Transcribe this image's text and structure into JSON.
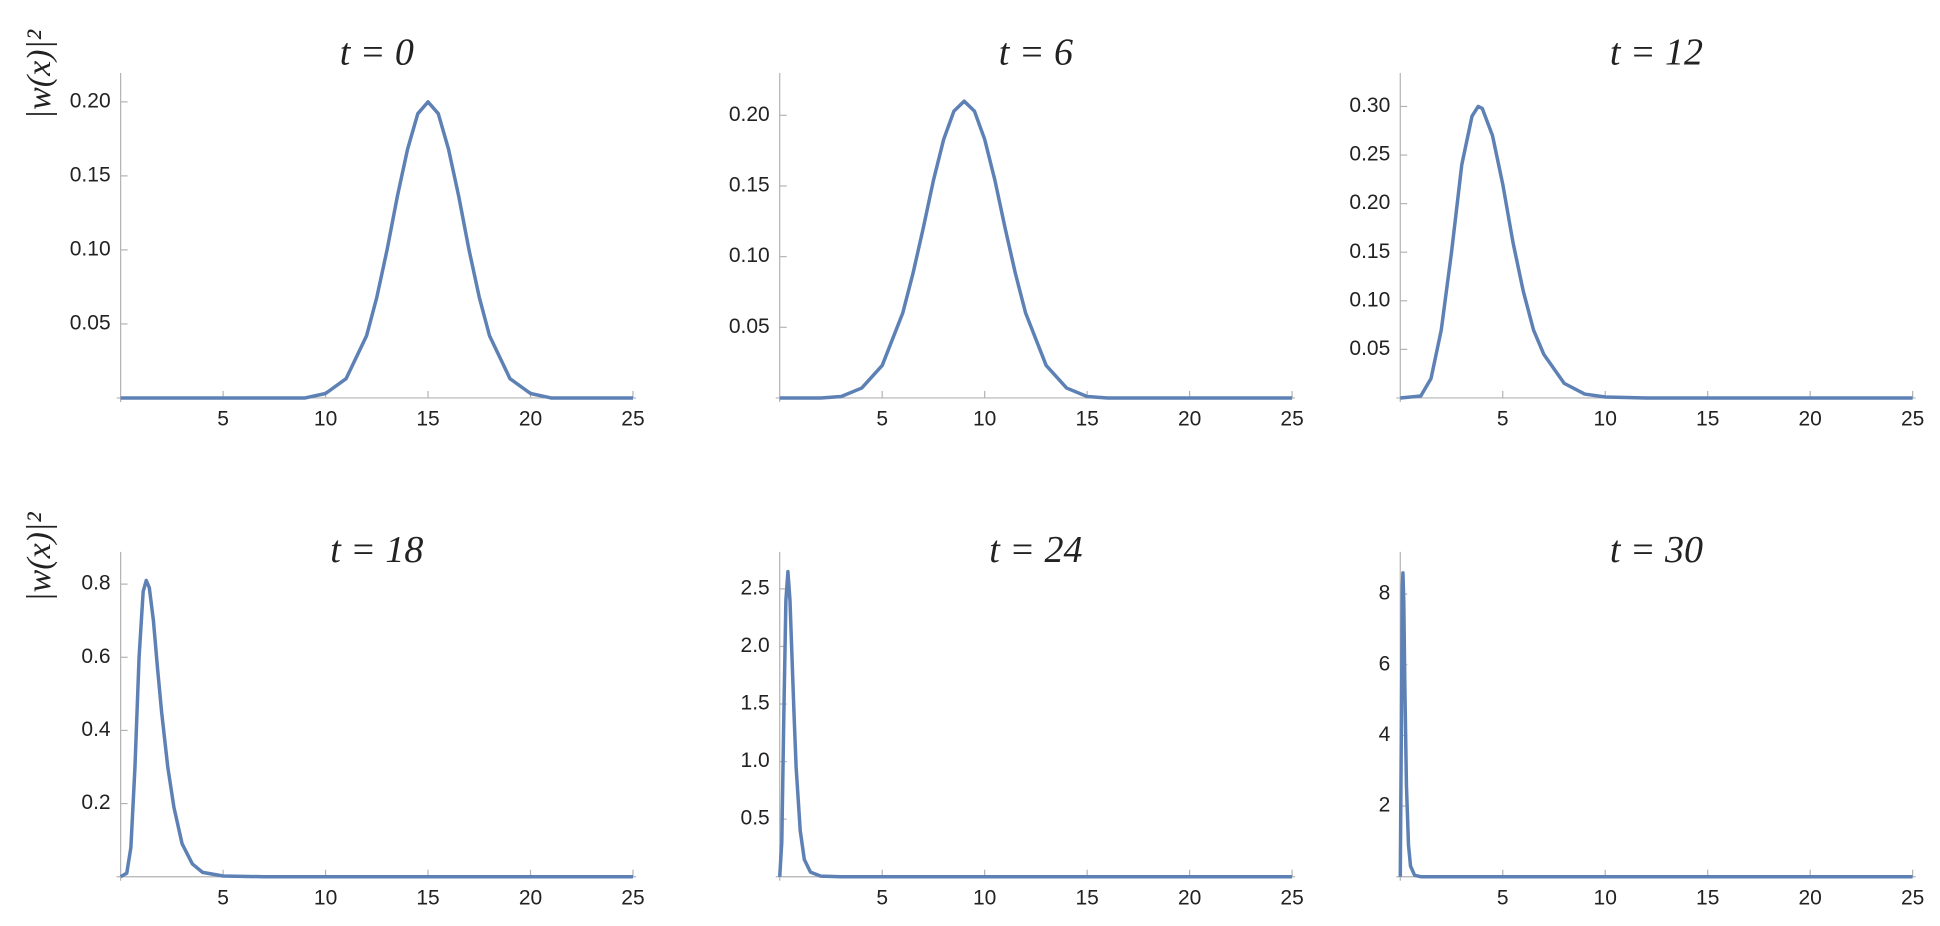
{
  "chart_data": [
    {
      "type": "line",
      "title": "t = 0",
      "ylabel": "|w(x)|²",
      "color": "#5e81b5",
      "x": [
        0,
        2,
        4,
        6,
        8,
        9,
        10,
        11,
        12,
        12.5,
        13,
        13.5,
        14,
        14.5,
        15,
        15.5,
        16,
        16.5,
        17,
        17.5,
        18,
        19,
        20,
        21,
        22,
        24,
        25
      ],
      "values": [
        0,
        0,
        0,
        0,
        0,
        0,
        0.003,
        0.013,
        0.042,
        0.068,
        0.1,
        0.136,
        0.168,
        0.192,
        0.2,
        0.192,
        0.168,
        0.136,
        0.1,
        0.068,
        0.042,
        0.013,
        0.003,
        0,
        0,
        0,
        0
      ],
      "xlim": [
        0,
        25
      ],
      "ylim": [
        0,
        0.21
      ],
      "xticks": [
        5,
        10,
        15,
        20,
        25
      ],
      "yticks": [
        0.05,
        {
          "value": 0.1,
          "label": "0.10"
        },
        0.15,
        {
          "value": 0.2,
          "label": "0.20"
        }
      ]
    },
    {
      "type": "line",
      "title": "t = 6",
      "color": "#5e81b5",
      "x": [
        0,
        2,
        3,
        4,
        5,
        6,
        6.5,
        7,
        7.5,
        8,
        8.5,
        9,
        9.5,
        10,
        10.5,
        11,
        11.5,
        12,
        13,
        14,
        15,
        16,
        18,
        20,
        25
      ],
      "values": [
        0,
        0,
        0.001,
        0.007,
        0.023,
        0.06,
        0.088,
        0.12,
        0.154,
        0.183,
        0.203,
        0.21,
        0.203,
        0.183,
        0.154,
        0.12,
        0.088,
        0.06,
        0.023,
        0.007,
        0.001,
        0,
        0,
        0,
        0
      ],
      "xlim": [
        0,
        25
      ],
      "ylim": [
        0,
        0.22
      ],
      "xticks": [
        5,
        10,
        15,
        20,
        25
      ],
      "yticks": [
        0.05,
        {
          "value": 0.1,
          "label": "0.10"
        },
        0.15,
        {
          "value": 0.2,
          "label": "0.20"
        }
      ]
    },
    {
      "type": "line",
      "title": "t = 12",
      "color": "#5e81b5",
      "x": [
        0,
        1,
        1.5,
        2,
        2.5,
        3,
        3.5,
        3.8,
        4,
        4.5,
        5,
        5.5,
        6,
        6.5,
        7,
        8,
        9,
        10,
        12,
        15,
        20,
        25
      ],
      "values": [
        0,
        0.002,
        0.02,
        0.07,
        0.15,
        0.24,
        0.29,
        0.3,
        0.298,
        0.27,
        0.22,
        0.16,
        0.11,
        0.07,
        0.045,
        0.015,
        0.004,
        0.001,
        0,
        0,
        0,
        0
      ],
      "xlim": [
        0,
        25
      ],
      "ylim": [
        0,
        0.32
      ],
      "xticks": [
        5,
        10,
        15,
        20,
        25
      ],
      "yticks": [
        0.05,
        {
          "value": 0.1,
          "label": "0.10"
        },
        0.15,
        {
          "value": 0.2,
          "label": "0.20"
        },
        0.25,
        {
          "value": 0.3,
          "label": "0.30"
        }
      ]
    },
    {
      "type": "line",
      "title": "t = 18",
      "ylabel": "|w(x)|²",
      "color": "#5e81b5",
      "x": [
        0,
        0.3,
        0.5,
        0.7,
        0.9,
        1.1,
        1.25,
        1.4,
        1.6,
        1.8,
        2,
        2.3,
        2.6,
        3,
        3.5,
        4,
        5,
        7,
        10,
        15,
        20,
        25
      ],
      "values": [
        0,
        0.01,
        0.08,
        0.3,
        0.6,
        0.78,
        0.81,
        0.79,
        0.7,
        0.57,
        0.45,
        0.3,
        0.19,
        0.09,
        0.035,
        0.012,
        0.002,
        0,
        0,
        0,
        0,
        0
      ],
      "xlim": [
        0,
        25
      ],
      "ylim": [
        0,
        0.85
      ],
      "xticks": [
        5,
        10,
        15,
        20,
        25
      ],
      "yticks": [
        0.2,
        0.4,
        0.6,
        0.8
      ]
    },
    {
      "type": "line",
      "title": "t = 24",
      "color": "#5e81b5",
      "x": [
        0,
        0.1,
        0.2,
        0.3,
        0.4,
        0.5,
        0.6,
        0.7,
        0.8,
        1,
        1.2,
        1.5,
        2,
        3,
        5,
        10,
        25
      ],
      "values": [
        0,
        0.3,
        1.4,
        2.4,
        2.65,
        2.4,
        1.9,
        1.4,
        0.95,
        0.4,
        0.15,
        0.04,
        0.005,
        0,
        0,
        0,
        0
      ],
      "xlim": [
        0,
        25
      ],
      "ylim": [
        0,
        2.7
      ],
      "xticks": [
        5,
        10,
        15,
        20,
        25
      ],
      "yticks": [
        0.5,
        {
          "value": 1,
          "label": "1.0"
        },
        1.5,
        {
          "value": 2,
          "label": "2.0"
        },
        2.5
      ]
    },
    {
      "type": "line",
      "title": "t = 30",
      "color": "#5e81b5",
      "x": [
        0,
        0.05,
        0.1,
        0.13,
        0.17,
        0.22,
        0.3,
        0.4,
        0.5,
        0.7,
        1,
        2,
        25
      ],
      "values": [
        0,
        4,
        8.2,
        8.6,
        7.8,
        5.5,
        2.6,
        0.9,
        0.3,
        0.04,
        0,
        0,
        0
      ],
      "xlim": [
        0,
        25
      ],
      "ylim": [
        0,
        8.8
      ],
      "xticks": [
        5,
        10,
        15,
        20,
        25
      ],
      "yticks": [
        2,
        4,
        6,
        8
      ]
    }
  ]
}
